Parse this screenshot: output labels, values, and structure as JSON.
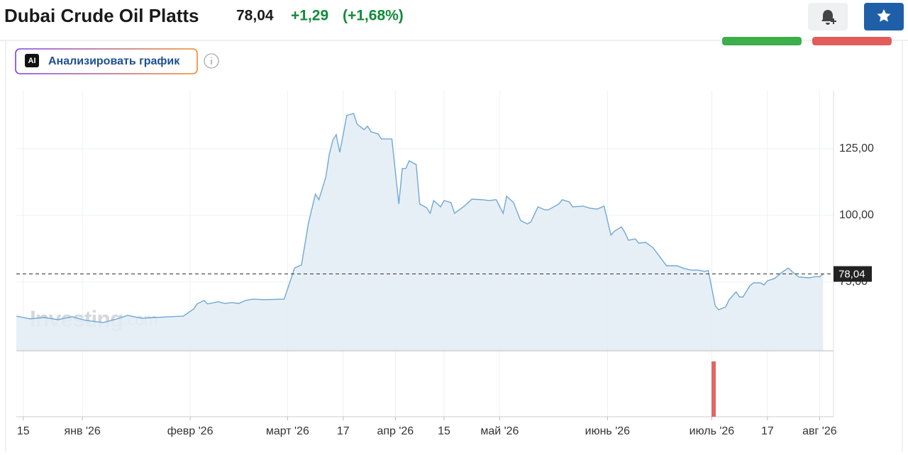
{
  "header": {
    "title": "Dubai Crude Oil Platts",
    "price": "78,04",
    "change": "+1,29",
    "change_pct": "(+1,68%)"
  },
  "ai_button": {
    "badge": "AI",
    "label": "Анализировать график"
  },
  "chart_data": {
    "type": "area",
    "color": "#6fa8d6",
    "fill": "#e3ecf5",
    "watermark": {
      "brand": "Investing",
      "domain": ".com"
    },
    "x": [
      "2025-12-13",
      "2025-12-17",
      "2025-12-21",
      "2025-12-25",
      "2025-12-29",
      "2026-01-02",
      "2026-01-07",
      "2026-01-11",
      "2026-01-14",
      "2026-01-18",
      "2026-01-22",
      "2026-01-26",
      "2026-01-30",
      "2026-02-02",
      "2026-02-03",
      "2026-02-05",
      "2026-02-06",
      "2026-02-09",
      "2026-02-11",
      "2026-02-13",
      "2026-02-15",
      "2026-02-17",
      "2026-02-19",
      "2026-02-22",
      "2026-02-28",
      "2026-03-02",
      "2026-03-03",
      "2026-03-05",
      "2026-03-07",
      "2026-03-09",
      "2026-03-10",
      "2026-03-12",
      "2026-03-13",
      "2026-03-14",
      "2026-03-15",
      "2026-03-16",
      "2026-03-17",
      "2026-03-18",
      "2026-03-20",
      "2026-03-21",
      "2026-03-23",
      "2026-03-24",
      "2026-03-25",
      "2026-03-27",
      "2026-03-28",
      "2026-03-31",
      "2026-04-02",
      "2026-04-03",
      "2026-04-04",
      "2026-04-05",
      "2026-04-07",
      "2026-04-08",
      "2026-04-10",
      "2026-04-11",
      "2026-04-12",
      "2026-04-14",
      "2026-04-15",
      "2026-04-17",
      "2026-04-18",
      "2026-04-20",
      "2026-04-21",
      "2026-04-23",
      "2026-04-26",
      "2026-04-28",
      "2026-04-30",
      "2026-05-02",
      "2026-05-03",
      "2026-05-05",
      "2026-05-07",
      "2026-05-09",
      "2026-05-10",
      "2026-05-12",
      "2026-05-14",
      "2026-05-15",
      "2026-05-18",
      "2026-05-19",
      "2026-05-21",
      "2026-05-22",
      "2026-05-25",
      "2026-05-27",
      "2026-05-29",
      "2026-05-31",
      "2026-06-02",
      "2026-06-03",
      "2026-06-05",
      "2026-06-06",
      "2026-06-07",
      "2026-06-09",
      "2026-06-10",
      "2026-06-12",
      "2026-06-14",
      "2026-06-16",
      "2026-06-18",
      "2026-06-21",
      "2026-06-23",
      "2026-06-25",
      "2026-06-27",
      "2026-06-29",
      "2026-06-30",
      "2026-07-02",
      "2026-07-03",
      "2026-07-05",
      "2026-07-06",
      "2026-07-08",
      "2026-07-09",
      "2026-07-10",
      "2026-07-12",
      "2026-07-13",
      "2026-07-15",
      "2026-07-16",
      "2026-07-17",
      "2026-07-19",
      "2026-07-21",
      "2026-07-23",
      "2026-07-24",
      "2026-07-26",
      "2026-07-29",
      "2026-07-31",
      "2026-08-01",
      "2026-08-02"
    ],
    "values": [
      62.2,
      61.2,
      61.7,
      60.9,
      62.0,
      60.6,
      59.8,
      61.2,
      62.5,
      61.4,
      61.7,
      62.0,
      62.2,
      64.9,
      66.8,
      68.1,
      66.8,
      67.6,
      67.0,
      67.3,
      67.0,
      68.1,
      68.6,
      68.4,
      68.6,
      76.3,
      80.3,
      81.4,
      97.1,
      108.0,
      105.9,
      114.4,
      122.9,
      128.2,
      130.3,
      123.7,
      130.3,
      137.5,
      138.3,
      134.3,
      132.2,
      133.5,
      131.4,
      130.6,
      128.7,
      128.7,
      104.3,
      117.6,
      117.6,
      120.5,
      119.1,
      104.3,
      102.9,
      100.8,
      105.6,
      103.2,
      105.6,
      104.8,
      100.8,
      102.7,
      103.7,
      106.1,
      105.9,
      105.6,
      105.9,
      100.8,
      107.2,
      104.8,
      98.1,
      96.8,
      97.6,
      103.2,
      102.1,
      102.1,
      104.3,
      105.9,
      105.1,
      103.2,
      103.5,
      102.7,
      102.4,
      103.5,
      92.6,
      94.1,
      95.7,
      93.6,
      90.7,
      91.2,
      89.6,
      89.9,
      88.0,
      84.6,
      81.1,
      81.1,
      80.1,
      79.5,
      79.5,
      79.0,
      79.3,
      66.0,
      64.6,
      65.7,
      68.4,
      71.3,
      69.4,
      69.4,
      73.7,
      74.7,
      74.7,
      73.9,
      75.5,
      76.3,
      78.5,
      80.3,
      79.0,
      76.9,
      76.6,
      77.1,
      76.9,
      78.04
    ],
    "xlim": [
      "2025-12-13",
      "2026-08-05"
    ],
    "xticks": [
      {
        "value": "2025-12-15",
        "label": "15"
      },
      {
        "value": "2026-01-01",
        "label": "янв '26"
      },
      {
        "value": "2026-02-01",
        "label": "февр '26"
      },
      {
        "value": "2026-03-01",
        "label": "март '26"
      },
      {
        "value": "2026-03-17",
        "label": "17"
      },
      {
        "value": "2026-04-01",
        "label": "апр '26"
      },
      {
        "value": "2026-04-15",
        "label": "15"
      },
      {
        "value": "2026-05-01",
        "label": "май '26"
      },
      {
        "value": "2026-06-01",
        "label": "июнь '26"
      },
      {
        "value": "2026-07-01",
        "label": "июль '26"
      },
      {
        "value": "2026-07-17",
        "label": "17"
      },
      {
        "value": "2026-08-01",
        "label": "авг '26"
      }
    ],
    "ylim": [
      49.2,
      146.8
    ],
    "yticks": [
      {
        "value": 75,
        "label": "75,00"
      },
      {
        "value": 100,
        "label": "100,00"
      },
      {
        "value": 125,
        "label": "125,00"
      }
    ],
    "current": {
      "value": 78.04,
      "label": "78,04"
    },
    "grid": true
  }
}
